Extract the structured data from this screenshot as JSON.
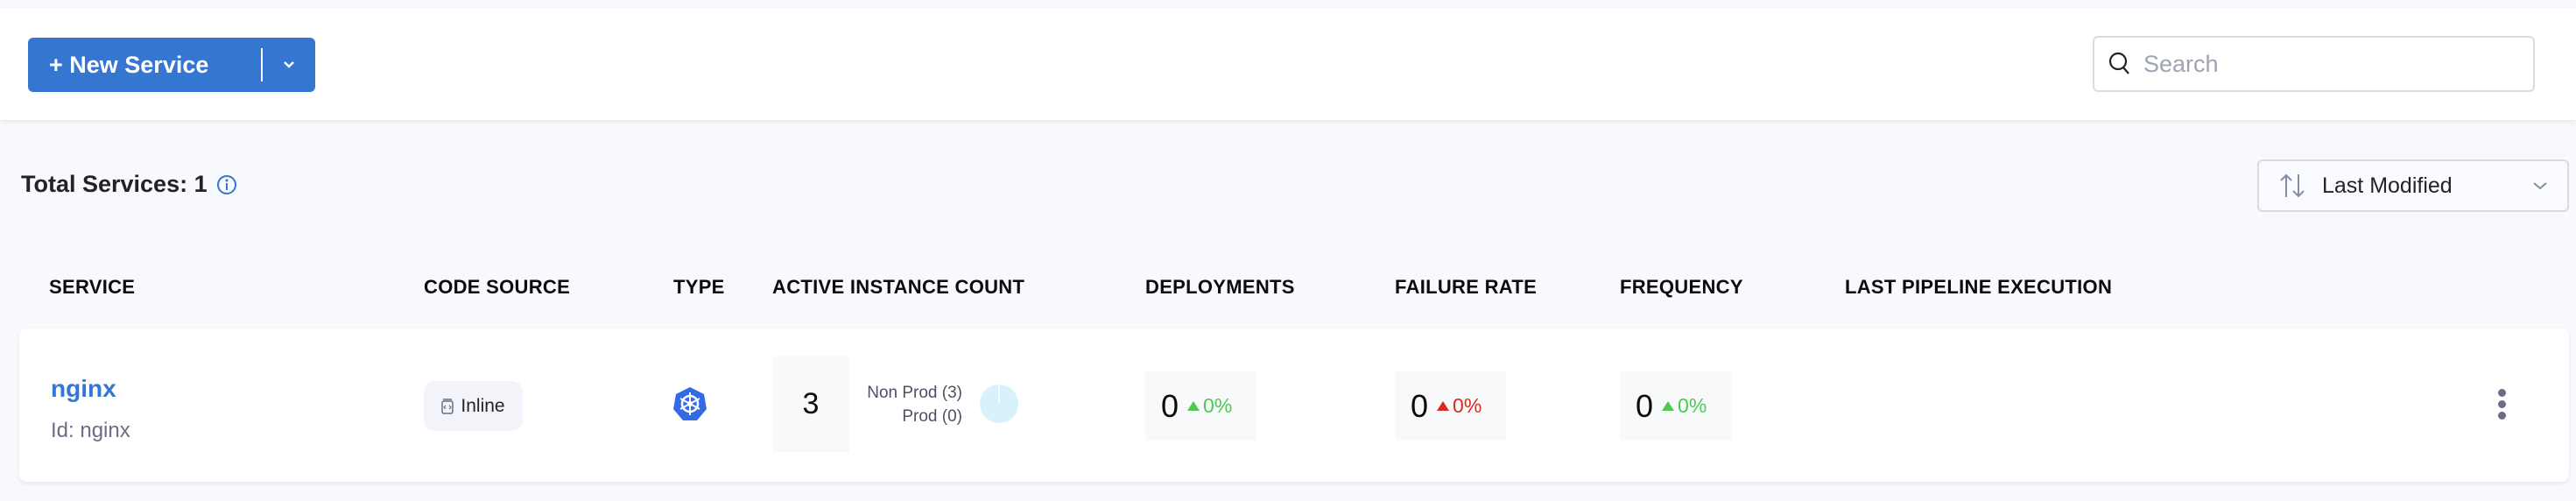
{
  "toolbar": {
    "new_service_label": "+ New Service",
    "search_placeholder": "Search"
  },
  "summary": {
    "total_label": "Total Services: 1"
  },
  "sort": {
    "selected": "Last Modified"
  },
  "table": {
    "headers": [
      "SERVICE",
      "CODE SOURCE",
      "TYPE",
      "ACTIVE INSTANCE COUNT",
      "DEPLOYMENTS",
      "FAILURE RATE",
      "FREQUENCY",
      "LAST PIPELINE EXECUTION"
    ],
    "rows": [
      {
        "name": "nginx",
        "id": "Id: nginx",
        "code_source": "Inline",
        "type_icon": "kubernetes-icon",
        "instance_count": "3",
        "non_prod": "Non Prod (3)",
        "prod": "Prod (0)",
        "deployments": {
          "value": "0",
          "change": "0%",
          "color": "#4dc952"
        },
        "failure_rate": {
          "value": "0",
          "change": "0%",
          "color": "#da291d"
        },
        "frequency": {
          "value": "0",
          "change": "0%",
          "color": "#4dc952"
        }
      }
    ]
  },
  "colors": {
    "accent": "#3476d0",
    "pie_nonprod": "#d7f2fa"
  }
}
